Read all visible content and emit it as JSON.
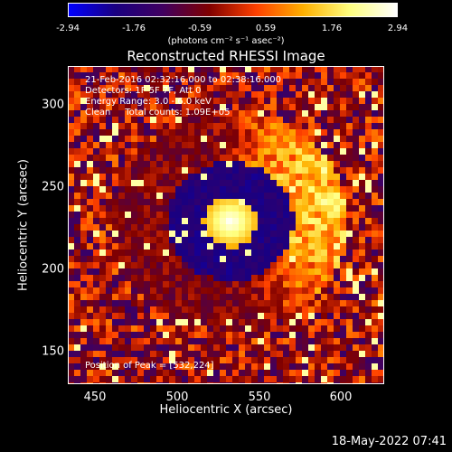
{
  "colorbar": {
    "ticks": [
      "-2.94",
      "-1.76",
      "-0.59",
      "0.59",
      "1.76",
      "2.94"
    ],
    "units_label": "(photons cm⁻² s⁻¹ asec⁻²)"
  },
  "title": "Reconstructed RHESSI Image",
  "annotations": {
    "time_range": "21-Feb-2016 02:32:16.000 to 02:38:16.000",
    "detectors": "Detectors: 1F 5F 7F, Att 0",
    "energy": "Energy Range: 3.0 - 6.0 keV",
    "algorithm": "Clean     Total counts: 1.09E+05",
    "peak": "Position of Peak = [532,224]"
  },
  "axes": {
    "x_label": "Heliocentric X (arcsec)",
    "y_label": "Heliocentric Y (arcsec)",
    "x_ticks": [
      "450",
      "500",
      "550",
      "600"
    ],
    "y_ticks": [
      "300",
      "250",
      "200",
      "150"
    ]
  },
  "footer_date": "18-May-2022 07:41",
  "colors": {
    "background": "#000000",
    "colormap": [
      "#0000ff",
      "#1a0080",
      "#400060",
      "#800000",
      "#ff4000",
      "#ffb000",
      "#ffff80",
      "#ffffff"
    ]
  }
}
